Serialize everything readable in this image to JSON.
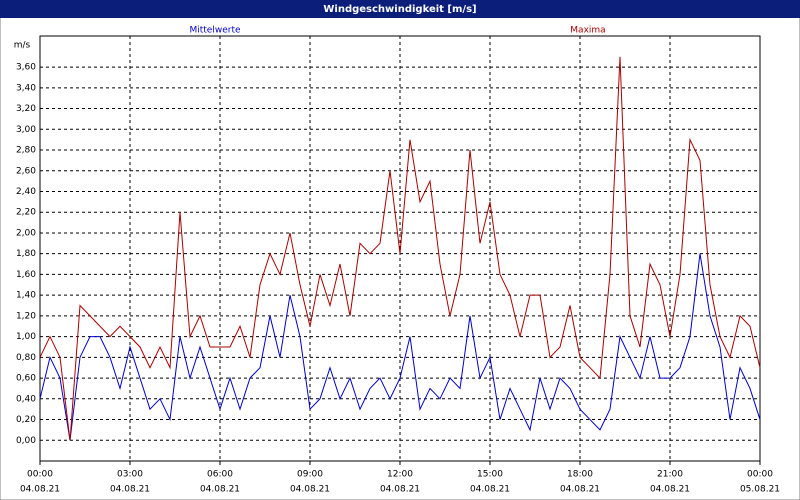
{
  "chart_data": {
    "type": "line",
    "title": "Windgeschwindigkeit [m/s]",
    "y_unit": "m/s",
    "x": [
      0,
      20,
      40,
      60,
      80,
      100,
      120,
      140,
      160,
      180,
      200,
      220,
      240,
      260,
      280,
      300,
      320,
      340,
      360,
      380,
      400,
      420,
      440,
      460,
      480,
      500,
      520,
      540,
      560,
      580,
      600,
      620,
      640,
      660,
      680,
      700,
      720,
      740,
      760,
      780,
      800,
      820,
      840,
      860,
      880,
      900,
      920,
      940,
      960,
      980,
      1000,
      1020,
      1040,
      1060,
      1080,
      1100,
      1120,
      1140,
      1160,
      1180,
      1200,
      1220,
      1240,
      1260,
      1280,
      1300,
      1320,
      1340,
      1360,
      1380,
      1400,
      1420,
      1440
    ],
    "series": [
      {
        "name": "Mittelwerte",
        "color": "#0000cc",
        "values": [
          0.4,
          0.8,
          0.6,
          0.0,
          0.8,
          1.0,
          1.0,
          0.8,
          0.5,
          0.9,
          0.6,
          0.3,
          0.4,
          0.2,
          1.0,
          0.6,
          0.9,
          0.6,
          0.3,
          0.6,
          0.3,
          0.6,
          0.7,
          1.2,
          0.8,
          1.4,
          1.0,
          0.3,
          0.4,
          0.7,
          0.4,
          0.6,
          0.3,
          0.5,
          0.6,
          0.4,
          0.6,
          1.0,
          0.3,
          0.5,
          0.4,
          0.6,
          0.5,
          1.2,
          0.6,
          0.8,
          0.2,
          0.5,
          0.3,
          0.1,
          0.6,
          0.3,
          0.6,
          0.5,
          0.3,
          0.2,
          0.1,
          0.3,
          1.0,
          0.8,
          0.6,
          1.0,
          0.6,
          0.6,
          0.7,
          1.0,
          1.8,
          1.2,
          0.9,
          0.2,
          0.7,
          0.5,
          0.2
        ]
      },
      {
        "name": "Maxima",
        "color": "#aa0000",
        "values": [
          0.8,
          1.0,
          0.8,
          0.0,
          1.3,
          1.2,
          1.1,
          1.0,
          1.1,
          1.0,
          0.9,
          0.7,
          0.9,
          0.7,
          2.2,
          1.0,
          1.2,
          0.9,
          0.9,
          0.9,
          1.1,
          0.8,
          1.5,
          1.8,
          1.6,
          2.0,
          1.5,
          1.1,
          1.6,
          1.3,
          1.7,
          1.2,
          1.9,
          1.8,
          1.9,
          2.6,
          1.8,
          2.9,
          2.3,
          2.5,
          1.7,
          1.2,
          1.6,
          2.8,
          1.9,
          2.3,
          1.6,
          1.4,
          1.0,
          1.4,
          1.4,
          0.8,
          0.9,
          1.3,
          0.8,
          0.7,
          0.6,
          1.6,
          3.7,
          1.2,
          0.9,
          1.7,
          1.5,
          1.0,
          1.6,
          2.9,
          2.7,
          1.5,
          1.0,
          0.8,
          1.2,
          1.1,
          0.7
        ]
      }
    ],
    "xlim": [
      0,
      1440
    ],
    "xticks": [
      {
        "value": 0,
        "label": "00:00",
        "date": "04.08.21"
      },
      {
        "value": 180,
        "label": "03:00",
        "date": "04.08.21"
      },
      {
        "value": 360,
        "label": "06:00",
        "date": "04.08.21"
      },
      {
        "value": 540,
        "label": "09:00",
        "date": "04.08.21"
      },
      {
        "value": 720,
        "label": "12:00",
        "date": "04.08.21"
      },
      {
        "value": 900,
        "label": "15:00",
        "date": "04.08.21"
      },
      {
        "value": 1080,
        "label": "18:00",
        "date": "04.08.21"
      },
      {
        "value": 1260,
        "label": "21:00",
        "date": "04.08.21"
      },
      {
        "value": 1440,
        "label": "00:00",
        "date": "05.08.21"
      }
    ],
    "ylim": [
      -0.2,
      3.9
    ],
    "yticks": [
      {
        "value": 0,
        "label": "0,00"
      },
      {
        "value": 0.2,
        "label": "0,20"
      },
      {
        "value": 0.4,
        "label": "0,40"
      },
      {
        "value": 0.6,
        "label": "0,60"
      },
      {
        "value": 0.8,
        "label": "0,80"
      },
      {
        "value": 1,
        "label": "1,00"
      },
      {
        "value": 1.2,
        "label": "1,20"
      },
      {
        "value": 1.4,
        "label": "1,40"
      },
      {
        "value": 1.6,
        "label": "1,60"
      },
      {
        "value": 1.8,
        "label": "1,80"
      },
      {
        "value": 2,
        "label": "2,00"
      },
      {
        "value": 2.2,
        "label": "2,20"
      },
      {
        "value": 2.4,
        "label": "2,40"
      },
      {
        "value": 2.6,
        "label": "2,60"
      },
      {
        "value": 2.8,
        "label": "2,80"
      },
      {
        "value": 3,
        "label": "3,00"
      },
      {
        "value": 3.2,
        "label": "3,20"
      },
      {
        "value": 3.4,
        "label": "3,40"
      },
      {
        "value": 3.6,
        "label": "3,60"
      }
    ],
    "grid": true
  }
}
